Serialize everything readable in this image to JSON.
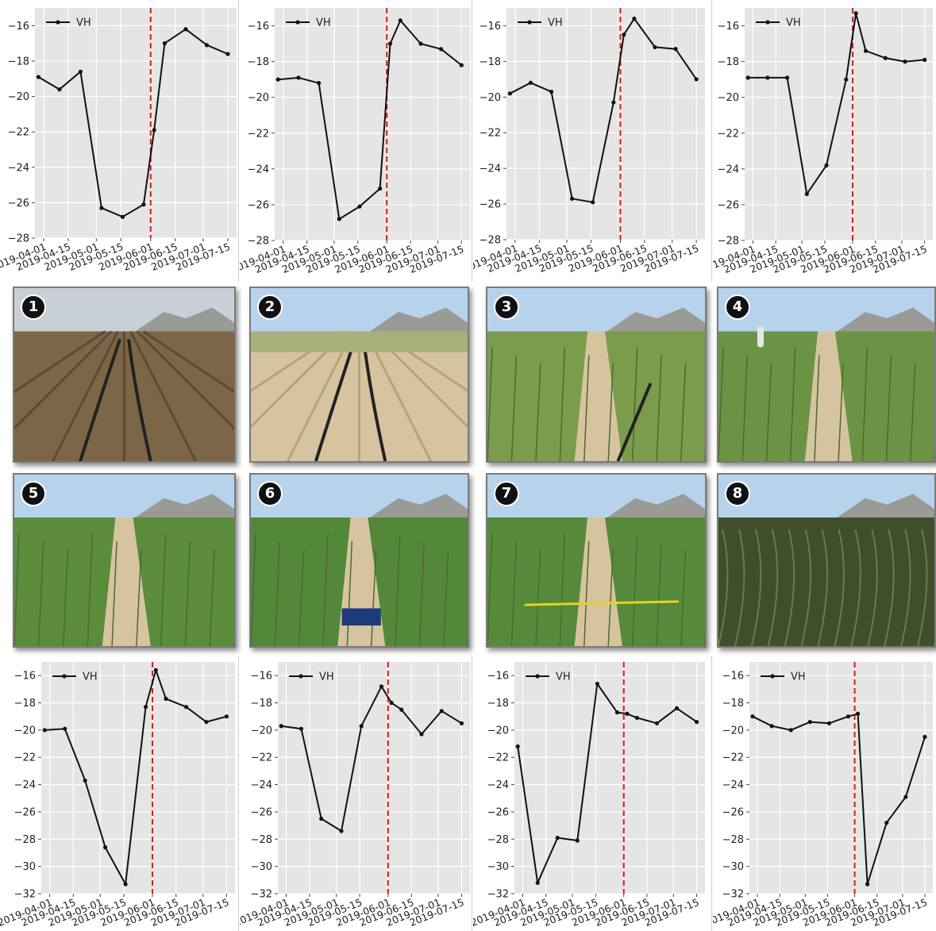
{
  "colors": {
    "plot_bg": "#e5e5e5",
    "grid": "#ffffff",
    "series": "#111111",
    "event_line": "#e8141a"
  },
  "chart_data": [
    {
      "type": "line",
      "legend": {
        "entries": [
          "VH"
        ],
        "placement": "top-left"
      },
      "x_tick_labels": [
        "2019-04-01",
        "2019-04-15",
        "2019-05-01",
        "2019-05-15",
        "2019-06-01",
        "2019-06-15",
        "2019-07-01",
        "2019-07-15"
      ],
      "xlim": [
        "2019-03-27",
        "2019-07-20"
      ],
      "ylim": [
        -28,
        -15
      ],
      "y_ticks": [
        -28,
        -26,
        -24,
        -22,
        -20,
        -18,
        -16
      ],
      "grid": true,
      "vline_date": "2019-06-01",
      "series": [
        {
          "name": "VH",
          "dates": [
            "2019-03-29",
            "2019-04-10",
            "2019-04-22",
            "2019-05-04",
            "2019-05-16",
            "2019-05-28",
            "2019-06-03",
            "2019-06-09",
            "2019-06-21",
            "2019-07-03",
            "2019-07-15"
          ],
          "values": [
            -18.9,
            -19.6,
            -18.6,
            -26.3,
            -26.8,
            -26.1,
            -21.9,
            -17.0,
            -16.2,
            -17.1,
            -17.6
          ]
        }
      ]
    },
    {
      "type": "line",
      "legend": {
        "entries": [
          "VH"
        ],
        "placement": "top-left"
      },
      "x_tick_labels": [
        "2019-04-01",
        "2019-04-15",
        "2019-05-01",
        "2019-05-15",
        "2019-06-01",
        "2019-06-15",
        "2019-07-01",
        "2019-07-15"
      ],
      "xlim": [
        "2019-03-27",
        "2019-07-20"
      ],
      "ylim": [
        -28,
        -15
      ],
      "y_ticks": [
        -28,
        -26,
        -24,
        -22,
        -20,
        -18,
        -16
      ],
      "grid": true,
      "vline_date": "2019-06-01",
      "series": [
        {
          "name": "VH",
          "dates": [
            "2019-03-29",
            "2019-04-10",
            "2019-04-22",
            "2019-05-04",
            "2019-05-16",
            "2019-05-28",
            "2019-06-03",
            "2019-06-09",
            "2019-06-21",
            "2019-07-03",
            "2019-07-15"
          ],
          "values": [
            -19.0,
            -18.9,
            -19.2,
            -26.8,
            -26.1,
            -25.1,
            -17.0,
            -15.7,
            -17.0,
            -17.3,
            -18.2
          ]
        }
      ]
    },
    {
      "type": "line",
      "legend": {
        "entries": [
          "VH"
        ],
        "placement": "top-left"
      },
      "x_tick_labels": [
        "2019-04-01",
        "2019-04-15",
        "2019-05-01",
        "2019-05-15",
        "2019-06-01",
        "2019-06-15",
        "2019-07-01",
        "2019-07-15"
      ],
      "xlim": [
        "2019-03-27",
        "2019-07-20"
      ],
      "ylim": [
        -28,
        -15
      ],
      "y_ticks": [
        -28,
        -26,
        -24,
        -22,
        -20,
        -18,
        -16
      ],
      "grid": true,
      "vline_date": "2019-06-01",
      "series": [
        {
          "name": "VH",
          "dates": [
            "2019-03-29",
            "2019-04-10",
            "2019-04-22",
            "2019-05-04",
            "2019-05-16",
            "2019-05-28",
            "2019-06-03",
            "2019-06-09",
            "2019-06-21",
            "2019-07-03",
            "2019-07-15"
          ],
          "values": [
            -19.8,
            -19.2,
            -19.7,
            -25.7,
            -25.9,
            -20.3,
            -16.5,
            -15.6,
            -17.2,
            -17.3,
            -19.0
          ]
        }
      ]
    },
    {
      "type": "line",
      "legend": {
        "entries": [
          "VH"
        ],
        "placement": "top-left"
      },
      "x_tick_labels": [
        "2019-04-01",
        "2019-04-15",
        "2019-05-01",
        "2019-05-15",
        "2019-06-01",
        "2019-06-15",
        "2019-07-01",
        "2019-07-15"
      ],
      "xlim": [
        "2019-03-27",
        "2019-07-20"
      ],
      "ylim": [
        -28,
        -15
      ],
      "y_ticks": [
        -28,
        -26,
        -24,
        -22,
        -20,
        -18,
        -16
      ],
      "grid": true,
      "vline_date": "2019-06-01",
      "series": [
        {
          "name": "VH",
          "dates": [
            "2019-03-29",
            "2019-04-10",
            "2019-04-22",
            "2019-05-04",
            "2019-05-16",
            "2019-05-28",
            "2019-06-03",
            "2019-06-09",
            "2019-06-21",
            "2019-07-03",
            "2019-07-15"
          ],
          "values": [
            -18.9,
            -18.9,
            -18.9,
            -25.4,
            -23.8,
            -19.0,
            -15.3,
            -17.4,
            -17.8,
            -18.0,
            -17.9
          ]
        }
      ]
    },
    {
      "type": "line",
      "legend": {
        "entries": [
          "VH"
        ],
        "placement": "top-left"
      },
      "x_tick_labels": [
        "2019-04-01",
        "2019-04-15",
        "2019-05-01",
        "2019-05-15",
        "2019-06-01",
        "2019-06-15",
        "2019-07-01",
        "2019-07-15"
      ],
      "xlim": [
        "2019-03-27",
        "2019-07-20"
      ],
      "ylim": [
        -32,
        -15
      ],
      "y_ticks": [
        -32,
        -30,
        -28,
        -26,
        -24,
        -22,
        -20,
        -18,
        -16
      ],
      "grid": true,
      "vline_date": "2019-06-01",
      "series": [
        {
          "name": "VH",
          "dates": [
            "2019-03-29",
            "2019-04-10",
            "2019-04-22",
            "2019-05-04",
            "2019-05-16",
            "2019-05-28",
            "2019-06-03",
            "2019-06-09",
            "2019-06-21",
            "2019-07-03",
            "2019-07-15"
          ],
          "values": [
            -20.0,
            -19.9,
            -23.7,
            -28.6,
            -31.3,
            -18.3,
            -15.6,
            -17.7,
            -18.3,
            -19.4,
            -19.0
          ]
        }
      ]
    },
    {
      "type": "line",
      "legend": {
        "entries": [
          "VH"
        ],
        "placement": "top-left"
      },
      "x_tick_labels": [
        "2019-04-01",
        "2019-04-15",
        "2019-05-01",
        "2019-05-15",
        "2019-06-01",
        "2019-06-15",
        "2019-07-01",
        "2019-07-15"
      ],
      "xlim": [
        "2019-03-27",
        "2019-07-20"
      ],
      "ylim": [
        -32,
        -15
      ],
      "y_ticks": [
        -32,
        -30,
        -28,
        -26,
        -24,
        -22,
        -20,
        -18,
        -16
      ],
      "grid": true,
      "vline_date": "2019-06-01",
      "series": [
        {
          "name": "VH",
          "dates": [
            "2019-03-29",
            "2019-04-10",
            "2019-04-22",
            "2019-05-04",
            "2019-05-16",
            "2019-05-28",
            "2019-06-03",
            "2019-06-09",
            "2019-06-21",
            "2019-07-03",
            "2019-07-15"
          ],
          "values": [
            -19.7,
            -19.9,
            -26.5,
            -27.4,
            -19.7,
            -16.8,
            -18.0,
            -18.5,
            -20.3,
            -18.6,
            -19.5
          ]
        }
      ]
    },
    {
      "type": "line",
      "legend": {
        "entries": [
          "VH"
        ],
        "placement": "top-left"
      },
      "x_tick_labels": [
        "2019-04-01",
        "2019-04-15",
        "2019-05-01",
        "2019-05-15",
        "2019-06-01",
        "2019-06-15",
        "2019-07-01",
        "2019-07-15"
      ],
      "xlim": [
        "2019-03-27",
        "2019-07-20"
      ],
      "ylim": [
        -32,
        -15
      ],
      "y_ticks": [
        -32,
        -30,
        -28,
        -26,
        -24,
        -22,
        -20,
        -18,
        -16
      ],
      "grid": true,
      "vline_date": "2019-06-01",
      "series": [
        {
          "name": "VH",
          "dates": [
            "2019-03-29",
            "2019-04-10",
            "2019-04-22",
            "2019-05-04",
            "2019-05-16",
            "2019-05-28",
            "2019-06-03",
            "2019-06-09",
            "2019-06-21",
            "2019-07-03",
            "2019-07-15"
          ],
          "values": [
            -21.2,
            -31.2,
            -27.9,
            -28.1,
            -16.6,
            -18.7,
            -18.8,
            -19.1,
            -19.5,
            -18.4,
            -19.4
          ]
        }
      ]
    },
    {
      "type": "line",
      "legend": {
        "entries": [
          "VH"
        ],
        "placement": "top-left"
      },
      "x_tick_labels": [
        "2019-04-01",
        "2019-04-15",
        "2019-05-01",
        "2019-05-15",
        "2019-06-01",
        "2019-06-15",
        "2019-07-01",
        "2019-07-15"
      ],
      "xlim": [
        "2019-03-27",
        "2019-07-20"
      ],
      "ylim": [
        -32,
        -15
      ],
      "y_ticks": [
        -32,
        -30,
        -28,
        -26,
        -24,
        -22,
        -20,
        -18,
        -16
      ],
      "grid": true,
      "vline_date": "2019-06-01",
      "series": [
        {
          "name": "VH",
          "dates": [
            "2019-03-29",
            "2019-04-10",
            "2019-04-22",
            "2019-05-04",
            "2019-05-16",
            "2019-05-28",
            "2019-06-03",
            "2019-06-09",
            "2019-06-21",
            "2019-07-03",
            "2019-07-15"
          ],
          "values": [
            -19.0,
            -19.7,
            -20.0,
            -19.4,
            -19.5,
            -19.0,
            -18.8,
            -31.3,
            -26.8,
            -24.9,
            -20.5
          ]
        }
      ]
    }
  ],
  "photos": [
    {
      "number": "1",
      "scene": "bare-soil-drip-lines"
    },
    {
      "number": "2",
      "scene": "emerging-spears"
    },
    {
      "number": "3",
      "scene": "young-fern-shoots"
    },
    {
      "number": "4",
      "scene": "fern-rows-with-person"
    },
    {
      "number": "5",
      "scene": "green-fern-rows"
    },
    {
      "number": "6",
      "scene": "dense-fern-with-crate"
    },
    {
      "number": "7",
      "scene": "fern-rows-with-tape"
    },
    {
      "number": "8",
      "scene": "dense-mature-fern"
    }
  ]
}
